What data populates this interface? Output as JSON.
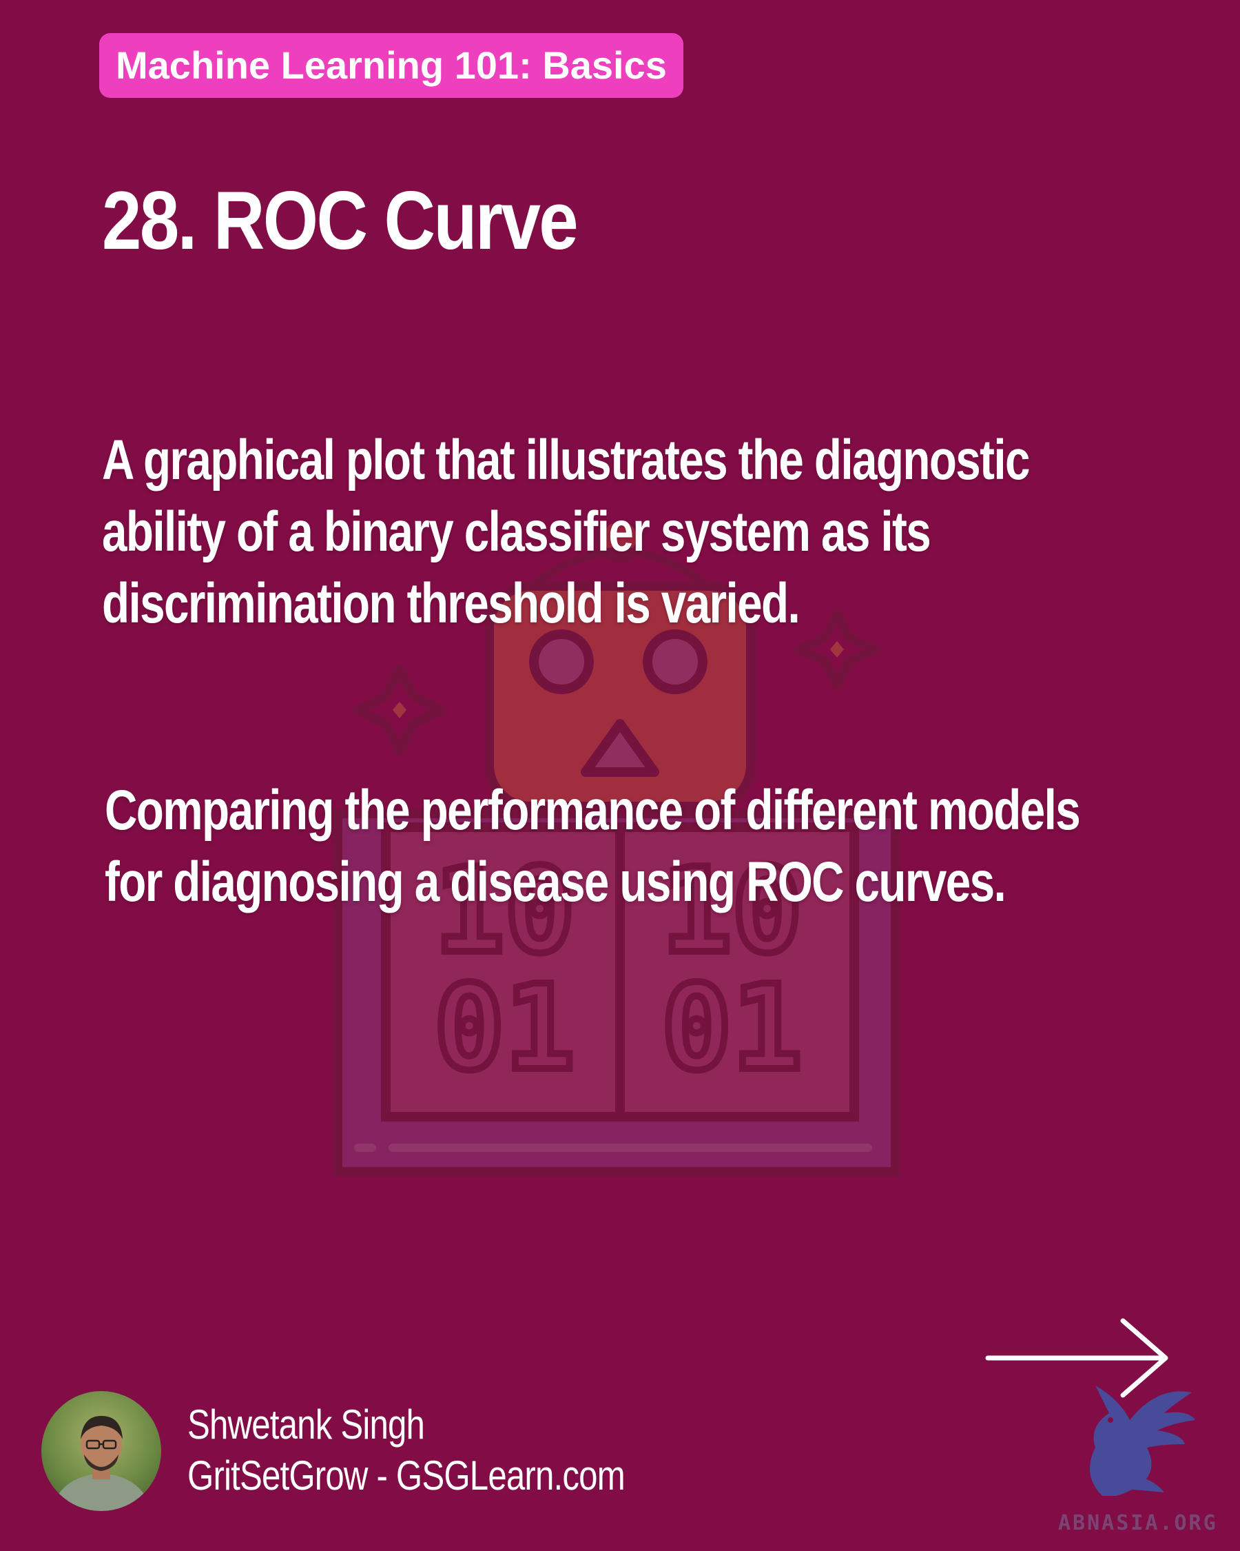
{
  "header": {
    "series_label": "Machine Learning 101: Basics",
    "title": "28. ROC Curve"
  },
  "body": {
    "definition": "A graphical plot that illustrates the diagnostic ability of a binary classifier system as its discrimination threshold is varied.",
    "example": "Comparing the performance of different models for diagnosing a disease using ROC curves."
  },
  "illustration": {
    "digits_top": [
      "10",
      "10"
    ],
    "digits_bottom": [
      "01",
      "01"
    ]
  },
  "navigation": {
    "next_icon": "right-arrow-icon"
  },
  "author": {
    "name": "Shwetank Singh",
    "site": "GritSetGrow - GSGLearn.com"
  },
  "watermark": {
    "logo_icon": "griffin-logo",
    "text": "ABNASIA.ORG"
  },
  "colors": {
    "background": "#820d46",
    "pill": "#ee3fbf",
    "text": "#ffffff"
  }
}
